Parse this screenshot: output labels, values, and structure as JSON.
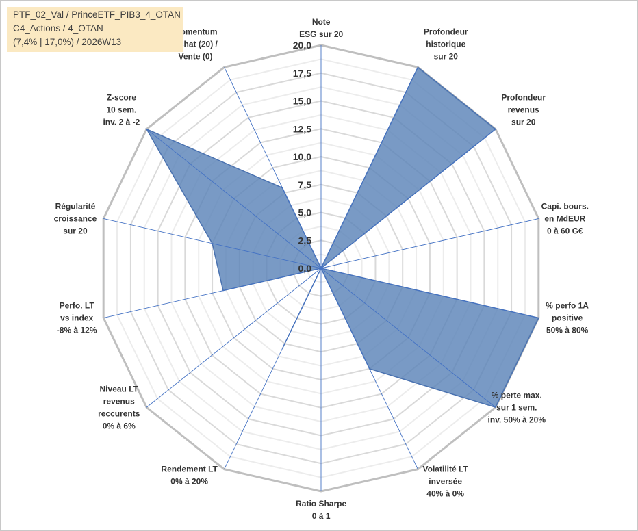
{
  "info_box": {
    "line1": "PTF_02_Val / PrinceETF_PIB3_4_OTAN",
    "line2": "C4_Actions / 4_OTAN",
    "line3": "(7,4% | 17,0%) / 2026W13"
  },
  "colors": {
    "fill": "#5b84b8",
    "fill_opacity": 0.82,
    "stroke": "#4a72b0",
    "grid_outer": "#bfbfbf",
    "grid_inner": "#d9d9d9",
    "spoke": "#4472c4",
    "background": "#ffffff"
  },
  "chart_data": {
    "type": "radar",
    "title": "",
    "rmin": 0,
    "rmax": 20,
    "grid_step": 2.5,
    "minor_rings": true,
    "tick_labels": [
      "0,0",
      "2,5",
      "5,0",
      "7,5",
      "10,0",
      "12,5",
      "15,0",
      "17,5",
      "20,0"
    ],
    "axes": [
      [
        "Note",
        "ESG sur 20"
      ],
      [
        "Profondeur",
        "historique",
        "sur 20"
      ],
      [
        "Profondeur",
        "revenus",
        "sur 20"
      ],
      [
        "Capi. bours.",
        "en MdEUR",
        "0 à 60 G€"
      ],
      [
        "% perfo 1A",
        "positive",
        "50% à 80%"
      ],
      [
        "% perte max.",
        "sur 1 sem.",
        "inv. 50% à 20%"
      ],
      [
        "Volatilité LT",
        "inversée",
        "40% à 0%"
      ],
      [
        "Ratio Sharpe",
        "0 à 1"
      ],
      [
        "Rendement LT",
        "0% à 20%"
      ],
      [
        "Niveau LT",
        "revenus",
        "reccurents",
        "0% à 6%"
      ],
      [
        "Perfo. LT",
        "vs index",
        "-8% à 12%"
      ],
      [
        "Régularité",
        "croissance",
        "sur 20"
      ],
      [
        "Z-score",
        "10 sem.",
        "inv. 2 à -2"
      ],
      [
        "Momentum",
        "Achat (20) /",
        "Vente (0)"
      ]
    ],
    "series": [
      {
        "values": [
          0,
          20,
          20,
          0,
          20,
          20,
          10,
          0,
          8,
          0,
          9,
          10,
          20,
          8
        ]
      }
    ]
  }
}
